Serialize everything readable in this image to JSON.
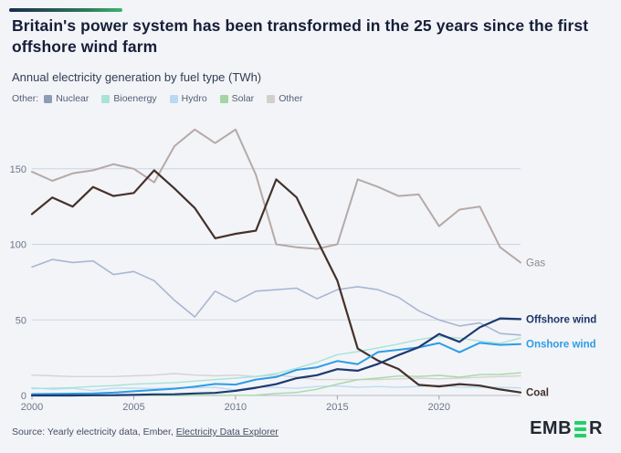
{
  "header": {
    "accent_colors": [
      "#1b2b4d",
      "#3cb56a"
    ]
  },
  "legend": {
    "prefix": "Other:",
    "items": [
      {
        "label": "Nuclear",
        "color": "#8f9cb8"
      },
      {
        "label": "Bioenergy",
        "color": "#a8e3d7"
      },
      {
        "label": "Hydro",
        "color": "#b9d9f2"
      },
      {
        "label": "Solar",
        "color": "#a3d6a2"
      },
      {
        "label": "Other",
        "color": "#d2cfcd"
      }
    ]
  },
  "chart_data": {
    "type": "line",
    "title": "Britain's power system has been transformed in the 25 years since the first offshore wind farm",
    "subtitle": "Annual electricity generation by fuel type (TWh)",
    "xlabel": "",
    "ylabel": "TWh",
    "x": [
      2000,
      2001,
      2002,
      2003,
      2004,
      2005,
      2006,
      2007,
      2008,
      2009,
      2010,
      2011,
      2012,
      2013,
      2014,
      2015,
      2016,
      2017,
      2018,
      2019,
      2020,
      2021,
      2022,
      2023,
      2024
    ],
    "xticks": [
      2000,
      2005,
      2010,
      2015,
      2020
    ],
    "yticks": [
      0,
      50,
      100,
      150
    ],
    "ylim": [
      0,
      183
    ],
    "grid": true,
    "legend_position": "top-left",
    "series": [
      {
        "id": "nuclear",
        "name": "Nuclear",
        "color": "#a9b6d3",
        "width": 1.6,
        "values": [
          85,
          90,
          88,
          89,
          80,
          82,
          76,
          63,
          52,
          69,
          62,
          69,
          70,
          71,
          64,
          70,
          72,
          70,
          65,
          56,
          50,
          46,
          48,
          41,
          40
        ]
      },
      {
        "id": "other",
        "name": "Other",
        "color": "#d6d3d1",
        "width": 1.4,
        "values": [
          13.5,
          13,
          12.5,
          12.5,
          12.5,
          13,
          13.5,
          14.5,
          13.5,
          13,
          13.5,
          12.5,
          13.5,
          12,
          10.5,
          10.5,
          10.5,
          10.5,
          11,
          11.5,
          11,
          11.5,
          12,
          12.5,
          13
        ]
      },
      {
        "id": "hydro",
        "name": "Hydro",
        "color": "#bcdcf4",
        "width": 1.4,
        "values": [
          5.1,
          4.1,
          4.8,
          3.2,
          4.8,
          4.9,
          4.6,
          5.1,
          5.1,
          5.3,
          3.6,
          5.7,
          5.3,
          4.7,
          5.9,
          6.3,
          5.4,
          5.9,
          5.4,
          5.9,
          6.8,
          5.5,
          5.4,
          5.3,
          5
        ]
      },
      {
        "id": "solar",
        "name": "Solar",
        "color": "#a9d8a8",
        "width": 1.4,
        "values": [
          0,
          0,
          0,
          0,
          0,
          0,
          0,
          0,
          0,
          0,
          0.1,
          0.2,
          1.3,
          2,
          4.1,
          7.5,
          10.4,
          11.5,
          12.9,
          12.6,
          13.3,
          12.1,
          13.8,
          13.9,
          15
        ]
      },
      {
        "id": "bioenergy",
        "name": "Bioenergy",
        "color": "#a8e3d7",
        "width": 1.4,
        "values": [
          4.5,
          4.8,
          5.2,
          6,
          6.5,
          7.5,
          8,
          8.5,
          9.5,
          10.5,
          11.5,
          12.5,
          14.5,
          18,
          22,
          27,
          29,
          31.5,
          34,
          37,
          39,
          38,
          36,
          34.5,
          38
        ]
      },
      {
        "id": "gas",
        "name": "Gas",
        "color": "#b6aaa6",
        "width": 2,
        "end_label": "Gas",
        "end_label_color": "#8f8a88",
        "end_label_bold": false,
        "values": [
          148,
          142,
          147,
          149,
          153,
          150,
          141,
          165,
          176,
          167,
          176,
          146,
          100,
          98,
          97,
          100,
          143,
          138,
          132,
          133,
          112,
          123,
          125,
          98,
          88
        ]
      },
      {
        "id": "coal",
        "name": "Coal",
        "color": "#44312a",
        "width": 2.2,
        "end_label": "Coal",
        "end_label_color": "#40312b",
        "end_label_bold": true,
        "values": [
          120,
          131,
          125,
          138,
          132,
          134,
          149,
          137,
          124,
          104,
          107,
          109,
          143,
          131,
          103,
          76,
          31,
          23,
          17.5,
          7,
          6,
          7.5,
          6.5,
          4,
          2
        ]
      },
      {
        "id": "onshore_wind",
        "name": "Onshore wind",
        "color": "#2e9ce4",
        "width": 2,
        "end_label": "Onshore wind",
        "end_label_color": "#2e9ce4",
        "end_label_bold": true,
        "values": [
          0.9,
          1,
          1.2,
          1.3,
          1.9,
          2.8,
          3.6,
          4.5,
          5.8,
          7.6,
          7.2,
          10.5,
          12.2,
          16.9,
          18.6,
          22.8,
          20.7,
          28.7,
          30.2,
          31.8,
          34.7,
          28.6,
          34.8,
          33.5,
          34
        ]
      },
      {
        "id": "offshore_wind",
        "name": "Offshore wind",
        "color": "#1e3a70",
        "width": 2.2,
        "end_label": "Offshore wind",
        "end_label_color": "#1e3566",
        "end_label_bold": true,
        "values": [
          0,
          0,
          0,
          0.1,
          0.2,
          0.4,
          0.7,
          0.8,
          1.3,
          1.7,
          3.1,
          5.1,
          7.5,
          11.4,
          13.4,
          17.4,
          16.4,
          20.9,
          26.7,
          31.9,
          40.7,
          35.5,
          45.1,
          51,
          50.5
        ]
      }
    ]
  },
  "footer": {
    "source_prefix": "Source: Yearly electricity data, Ember, ",
    "source_link": "Electricity Data Explorer",
    "logo": {
      "part1": "EMB",
      "part2": "R",
      "green_color": "#1fd267"
    }
  }
}
